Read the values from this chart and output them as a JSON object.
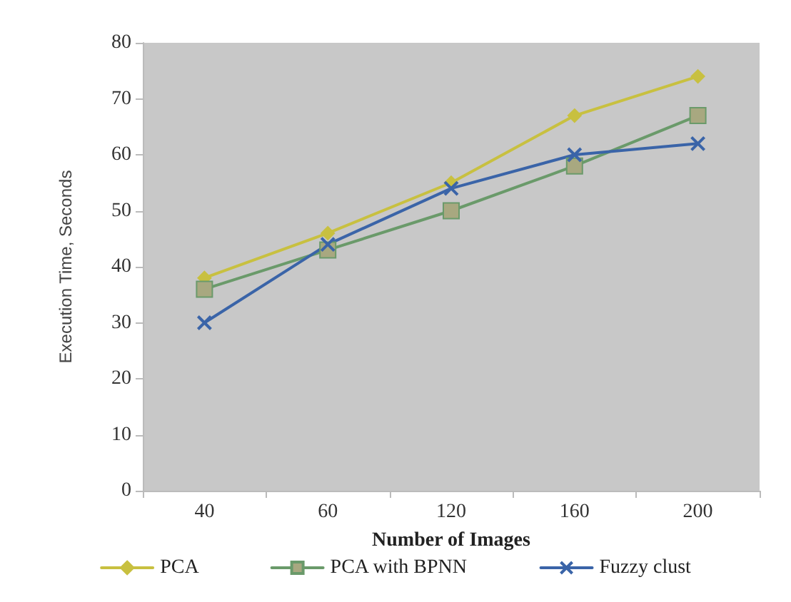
{
  "chart_data": {
    "type": "line",
    "xlabel": "Number of Images",
    "ylabel": "Execution Time, Seconds",
    "categories": [
      "40",
      "60",
      "120",
      "160",
      "200"
    ],
    "ylim": [
      0,
      80
    ],
    "yticks": [
      0,
      10,
      20,
      30,
      40,
      50,
      60,
      70,
      80
    ],
    "grid": false,
    "legend": "bottom",
    "line_style": "solid",
    "series": [
      {
        "name": "PCA",
        "color": "#c8c040",
        "marker": "diamond",
        "values": [
          38,
          46,
          55,
          67,
          74
        ]
      },
      {
        "name": "PCA with BPNN",
        "color": "#6a9a6a",
        "marker": "square",
        "values": [
          36,
          43,
          50,
          58,
          67
        ]
      },
      {
        "name": "Fuzzy clust",
        "color": "#3a64a8",
        "marker": "cross",
        "values": [
          30,
          44,
          54,
          60,
          62
        ]
      }
    ]
  }
}
